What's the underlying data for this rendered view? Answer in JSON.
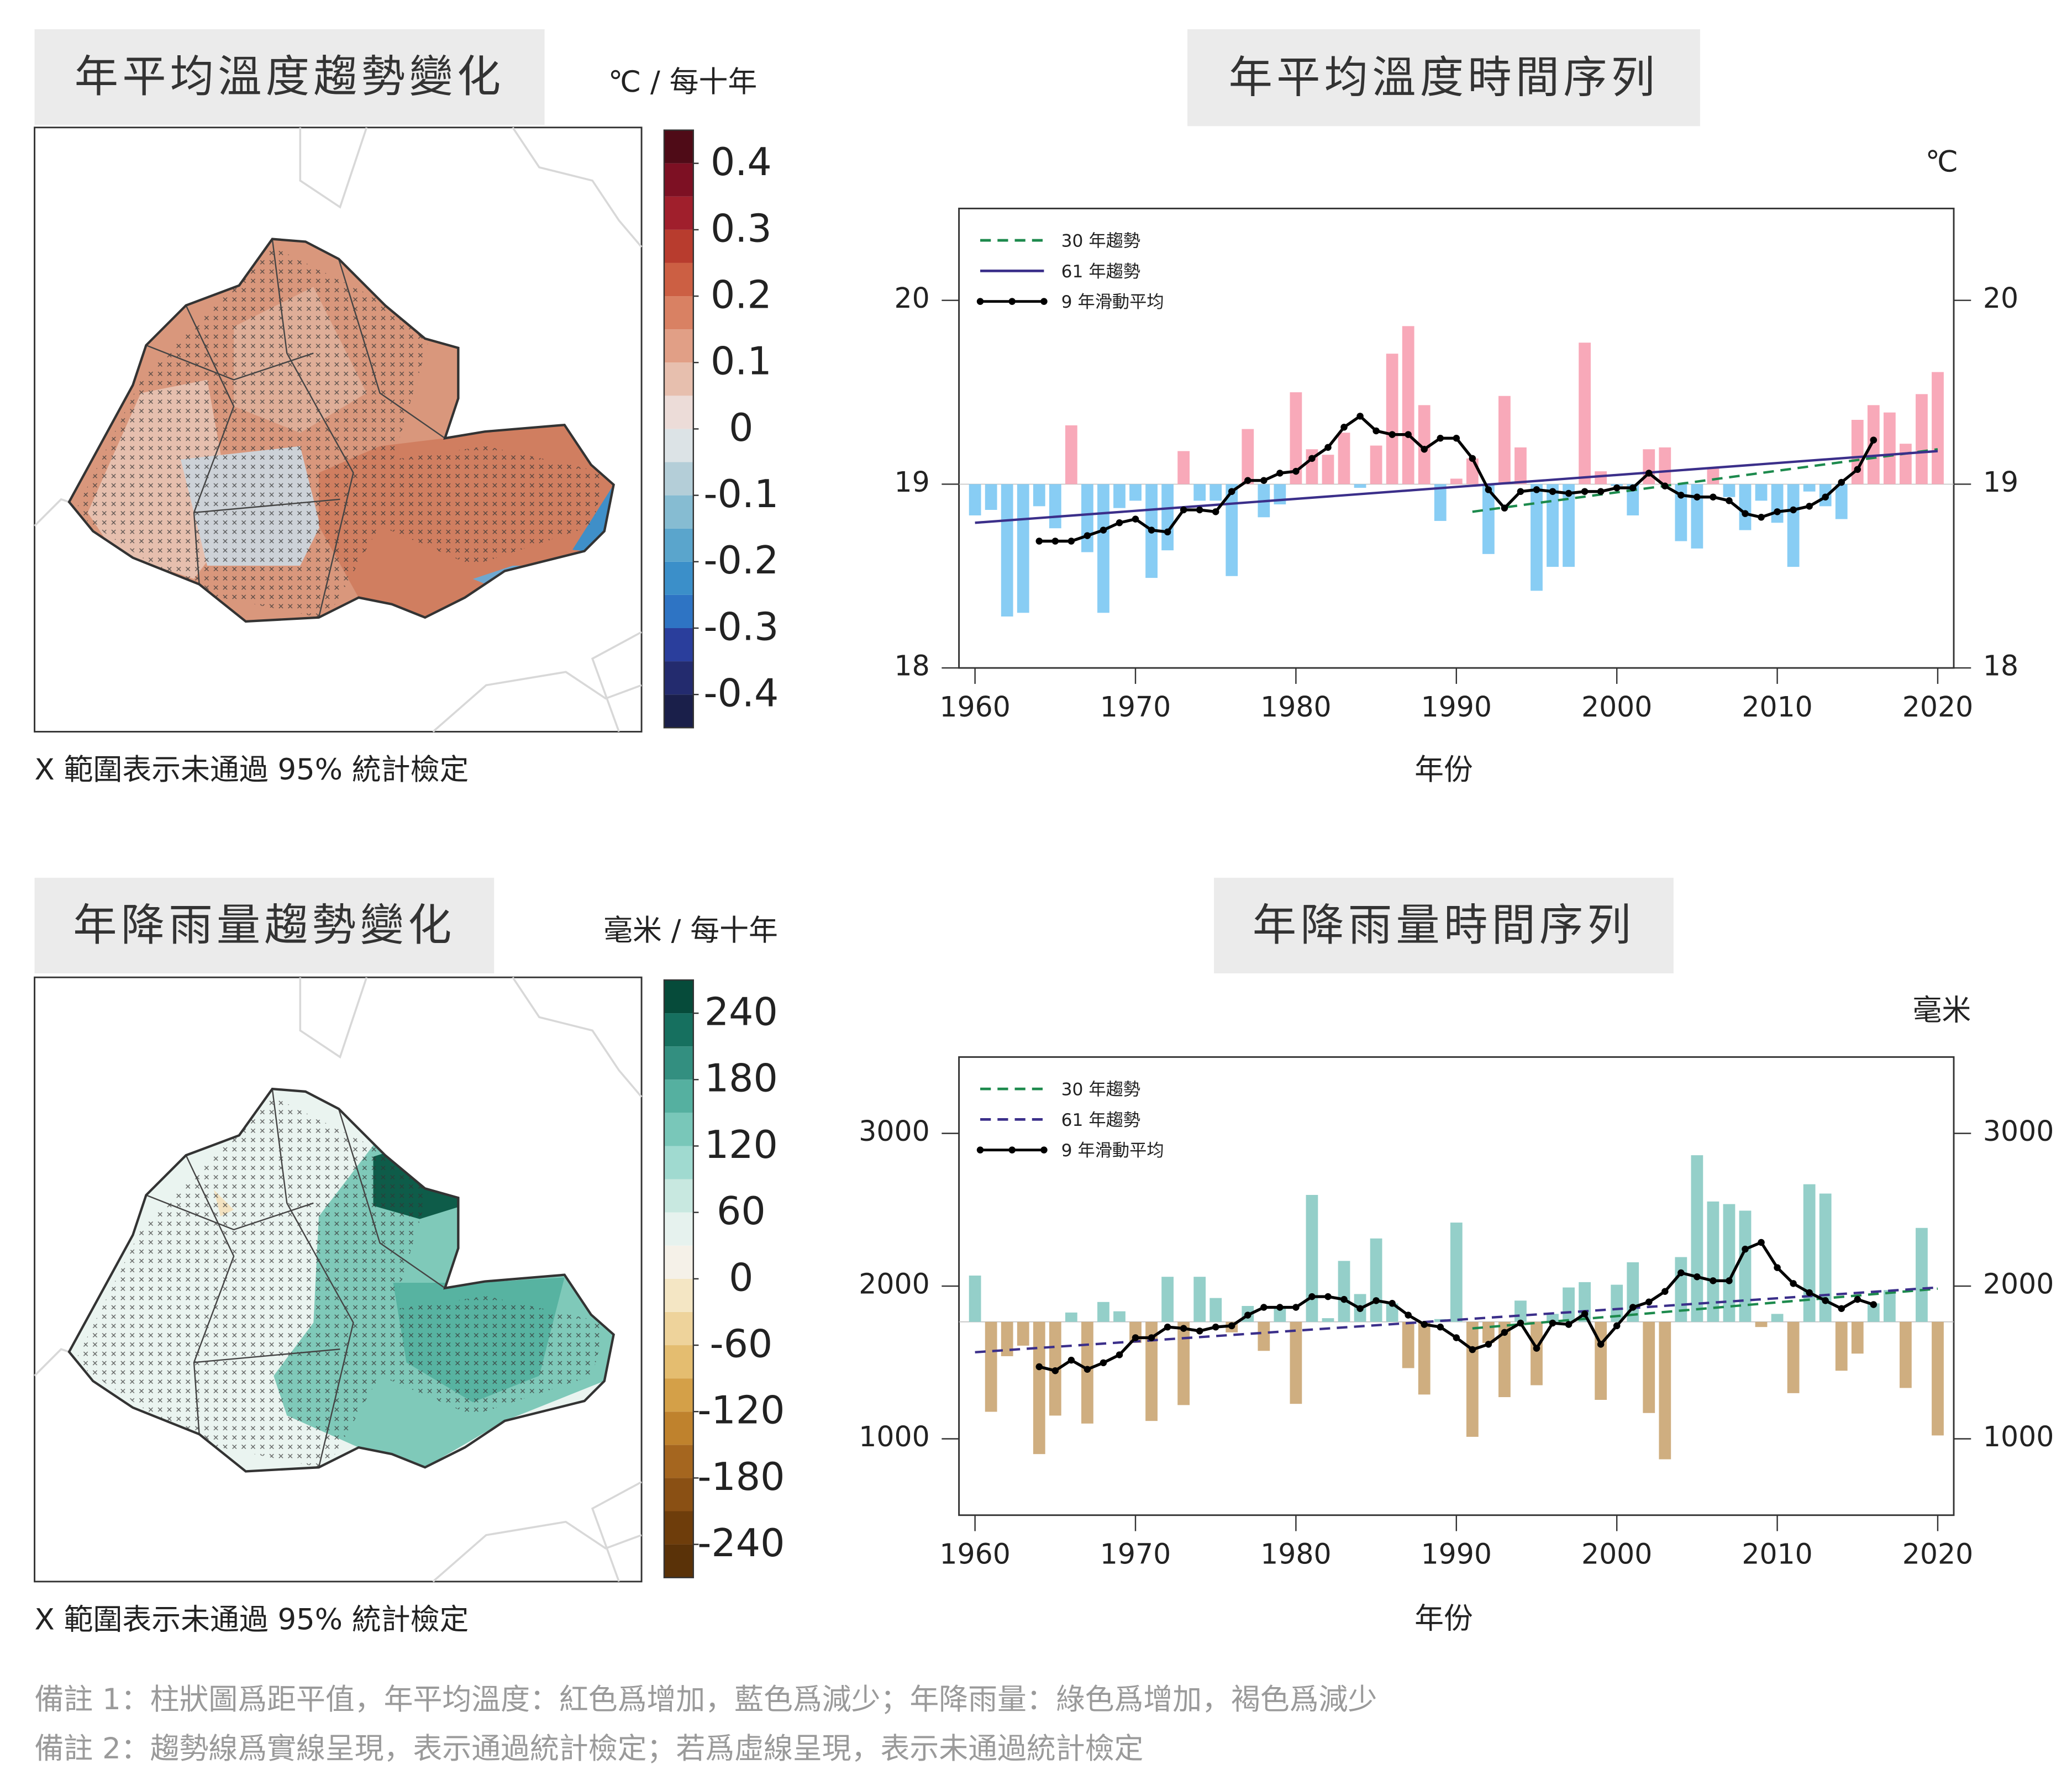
{
  "chart_data": [
    {
      "type": "map",
      "title": "年平均溫度趨勢變化",
      "unit": "℃ / 每十年",
      "clim": [
        -0.45,
        0.45
      ],
      "cticks": [
        0.4,
        0.3,
        0.2,
        0.1,
        0,
        -0.1,
        -0.2,
        -0.3,
        -0.4
      ],
      "colors": [
        "#1a1f4a",
        "#232b6e",
        "#2a3e9c",
        "#2e74c4",
        "#3b8fc9",
        "#5aa5cc",
        "#86bcd2",
        "#b4ced8",
        "#dce3e6",
        "#ecdcd8",
        "#e7bfae",
        "#e19f86",
        "#d98163",
        "#cc5f43",
        "#b83c2e",
        "#a01f2c",
        "#7d1023",
        "#4f0b17"
      ],
      "note": "X 範圍表示未通過 95% 統計檢定"
    },
    {
      "type": "combo",
      "title": "年平均溫度時間序列",
      "unit": "℃",
      "xlabel": "年份",
      "xlim": [
        1959,
        2021
      ],
      "xticks": [
        1960,
        1970,
        1980,
        1990,
        2000,
        2010,
        2020
      ],
      "ylim": [
        18,
        20.5
      ],
      "yticks": [
        18,
        19,
        20
      ],
      "baseline": 19,
      "above_color": "#f8a9b9",
      "below_color": "#88cdf4",
      "legend": "upper left",
      "x": [
        1960,
        1961,
        1962,
        1963,
        1964,
        1965,
        1966,
        1967,
        1968,
        1969,
        1970,
        1971,
        1972,
        1973,
        1974,
        1975,
        1976,
        1977,
        1978,
        1979,
        1980,
        1981,
        1982,
        1983,
        1984,
        1985,
        1986,
        1987,
        1988,
        1989,
        1990,
        1991,
        1992,
        1993,
        1994,
        1995,
        1996,
        1997,
        1998,
        1999,
        2000,
        2001,
        2002,
        2003,
        2004,
        2005,
        2006,
        2007,
        2008,
        2009,
        2010,
        2011,
        2012,
        2013,
        2014,
        2015,
        2016,
        2017,
        2018,
        2019,
        2020
      ],
      "values": [
        18.83,
        18.86,
        18.28,
        18.3,
        18.88,
        18.76,
        19.32,
        18.63,
        18.3,
        18.87,
        18.91,
        18.49,
        18.64,
        19.18,
        18.91,
        18.91,
        18.5,
        19.3,
        18.82,
        18.89,
        19.5,
        19.19,
        19.16,
        19.28,
        18.98,
        19.21,
        19.71,
        19.86,
        19.43,
        18.8,
        19.03,
        19.14,
        18.62,
        19.48,
        19.2,
        18.42,
        18.55,
        18.55,
        19.77,
        19.07,
        18.99,
        18.83,
        19.19,
        19.2,
        18.69,
        18.65,
        19.09,
        18.93,
        18.75,
        18.91,
        18.79,
        18.55,
        18.96,
        18.88,
        18.81,
        19.35,
        19.43,
        19.39,
        19.22,
        19.49,
        19.61
      ],
      "series": [
        {
          "name": "30 年趨勢",
          "color": "#1d8a4d",
          "dash": true,
          "x": [
            1991,
            2020
          ],
          "values": [
            18.85,
            19.19
          ]
        },
        {
          "name": "61 年趨勢",
          "color": "#3b2f8a",
          "dash": false,
          "x": [
            1960,
            2020
          ],
          "values": [
            18.79,
            19.18
          ]
        },
        {
          "name": "9 年滑動平均",
          "color": "#000000",
          "dash": false,
          "markers": true,
          "x": [
            1964,
            1965,
            1966,
            1967,
            1968,
            1969,
            1970,
            1971,
            1972,
            1973,
            1974,
            1975,
            1976,
            1977,
            1978,
            1979,
            1980,
            1981,
            1982,
            1983,
            1984,
            1985,
            1986,
            1987,
            1988,
            1989,
            1990,
            1991,
            1992,
            1993,
            1994,
            1995,
            1996,
            1997,
            1998,
            1999,
            2000,
            2001,
            2002,
            2003,
            2004,
            2005,
            2006,
            2007,
            2008,
            2009,
            2010,
            2011,
            2012,
            2013,
            2014,
            2015,
            2016
          ],
          "values": [
            18.69,
            18.69,
            18.69,
            18.72,
            18.75,
            18.79,
            18.81,
            18.75,
            18.74,
            18.86,
            18.86,
            18.85,
            18.96,
            19.02,
            19.02,
            19.06,
            19.07,
            19.14,
            19.2,
            19.31,
            19.37,
            19.29,
            19.27,
            19.27,
            19.19,
            19.25,
            19.25,
            19.14,
            18.97,
            18.87,
            18.96,
            18.97,
            18.96,
            18.95,
            18.96,
            18.96,
            18.98,
            18.98,
            19.06,
            18.99,
            18.94,
            18.93,
            18.93,
            18.91,
            18.84,
            18.82,
            18.85,
            18.86,
            18.88,
            18.93,
            19.01,
            19.08,
            19.24
          ]
        }
      ]
    },
    {
      "type": "map",
      "title": "年降雨量趨勢變化",
      "unit": "毫米 / 每十年",
      "clim": [
        -270,
        270
      ],
      "cticks": [
        240,
        180,
        120,
        60,
        0,
        -60,
        -120,
        -180,
        -240
      ],
      "colors": [
        "#5a3208",
        "#6e3d0b",
        "#8a5014",
        "#a5661f",
        "#bf822d",
        "#d4a048",
        "#e4bd70",
        "#eed39b",
        "#f4e6c4",
        "#f5f1e8",
        "#e6f2ee",
        "#c8e8e0",
        "#a0dad0",
        "#79c7b9",
        "#55b0a0",
        "#338f80",
        "#16705f",
        "#064b3a"
      ],
      "note": "X 範圍表示未通過 95% 統計檢定"
    },
    {
      "type": "combo",
      "title": "年降雨量時間序列",
      "unit": "毫米",
      "xlabel": "年份",
      "xlim": [
        1959,
        2021
      ],
      "xticks": [
        1960,
        1970,
        1980,
        1990,
        2000,
        2010,
        2020
      ],
      "ylim": [
        500,
        3500
      ],
      "yticks": [
        1000,
        2000,
        3000
      ],
      "baseline": 1766,
      "above_color": "#94cfc9",
      "below_color": "#cfae80",
      "legend": "upper left",
      "x": [
        1960,
        1961,
        1962,
        1963,
        1964,
        1965,
        1966,
        1967,
        1968,
        1969,
        1970,
        1971,
        1972,
        1973,
        1974,
        1975,
        1976,
        1977,
        1978,
        1979,
        1980,
        1981,
        1982,
        1983,
        1984,
        1985,
        1986,
        1987,
        1988,
        1989,
        1990,
        1991,
        1992,
        1993,
        1994,
        1995,
        1996,
        1997,
        1998,
        1999,
        2000,
        2001,
        2002,
        2003,
        2004,
        2005,
        2006,
        2007,
        2008,
        2009,
        2010,
        2011,
        2012,
        2013,
        2014,
        2015,
        2016,
        2017,
        2018,
        2019,
        2020
      ],
      "values": [
        2069,
        1177,
        1541,
        1610,
        900,
        1152,
        1827,
        1100,
        1896,
        1835,
        1628,
        1117,
        2061,
        1221,
        2061,
        1922,
        1697,
        1870,
        1576,
        1861,
        1229,
        2597,
        1790,
        2165,
        1948,
        2312,
        1887,
        1463,
        1290,
        1784,
        2416,
        1013,
        1628,
        1273,
        1905,
        1351,
        1818,
        1991,
        2026,
        1255,
        2009,
        2156,
        1169,
        866,
        2190,
        2857,
        2554,
        2537,
        2494,
        1732,
        1818,
        1299,
        2667,
        2606,
        1446,
        1558,
        1887,
        1974,
        1333,
        2381,
        1022
      ],
      "series": [
        {
          "name": "30 年趨勢",
          "color": "#1d8a4d",
          "dash": true,
          "x": [
            1991,
            2020
          ],
          "values": [
            1723,
            1983
          ]
        },
        {
          "name": "61 年趨勢",
          "color": "#3b2f8a",
          "dash": true,
          "x": [
            1960,
            2020
          ],
          "values": [
            1567,
            1991
          ]
        },
        {
          "name": "9 年滑動平均",
          "color": "#000000",
          "dash": false,
          "markers": true,
          "x": [
            1964,
            1965,
            1966,
            1967,
            1968,
            1969,
            1970,
            1971,
            1972,
            1973,
            1974,
            1975,
            1976,
            1977,
            1978,
            1979,
            1980,
            1981,
            1982,
            1983,
            1984,
            1985,
            1986,
            1987,
            1988,
            1989,
            1990,
            1991,
            1992,
            1993,
            1994,
            1995,
            1996,
            1997,
            1998,
            1999,
            2000,
            2001,
            2002,
            2003,
            2004,
            2005,
            2006,
            2007,
            2008,
            2009,
            2010,
            2011,
            2012,
            2013,
            2014,
            2015,
            2016
          ],
          "values": [
            1472,
            1446,
            1515,
            1455,
            1498,
            1550,
            1662,
            1662,
            1732,
            1723,
            1706,
            1732,
            1740,
            1810,
            1861,
            1861,
            1861,
            1931,
            1931,
            1913,
            1853,
            1905,
            1887,
            1810,
            1749,
            1732,
            1662,
            1584,
            1619,
            1697,
            1758,
            1593,
            1758,
            1749,
            1818,
            1619,
            1740,
            1861,
            1896,
            1965,
            2087,
            2061,
            2035,
            2035,
            2242,
            2286,
            2121,
            2017,
            1957,
            1905,
            1853,
            1913,
            1879
          ]
        }
      ]
    }
  ],
  "notes": [
    "備註 1：柱狀圖爲距平值，年平均溫度：紅色爲增加，藍色爲減少；年降雨量：綠色爲增加，褐色爲減少",
    "備註 2：趨勢線爲實線呈現，表示通過統計檢定；若爲虛線呈現，表示未通過統計檢定"
  ]
}
